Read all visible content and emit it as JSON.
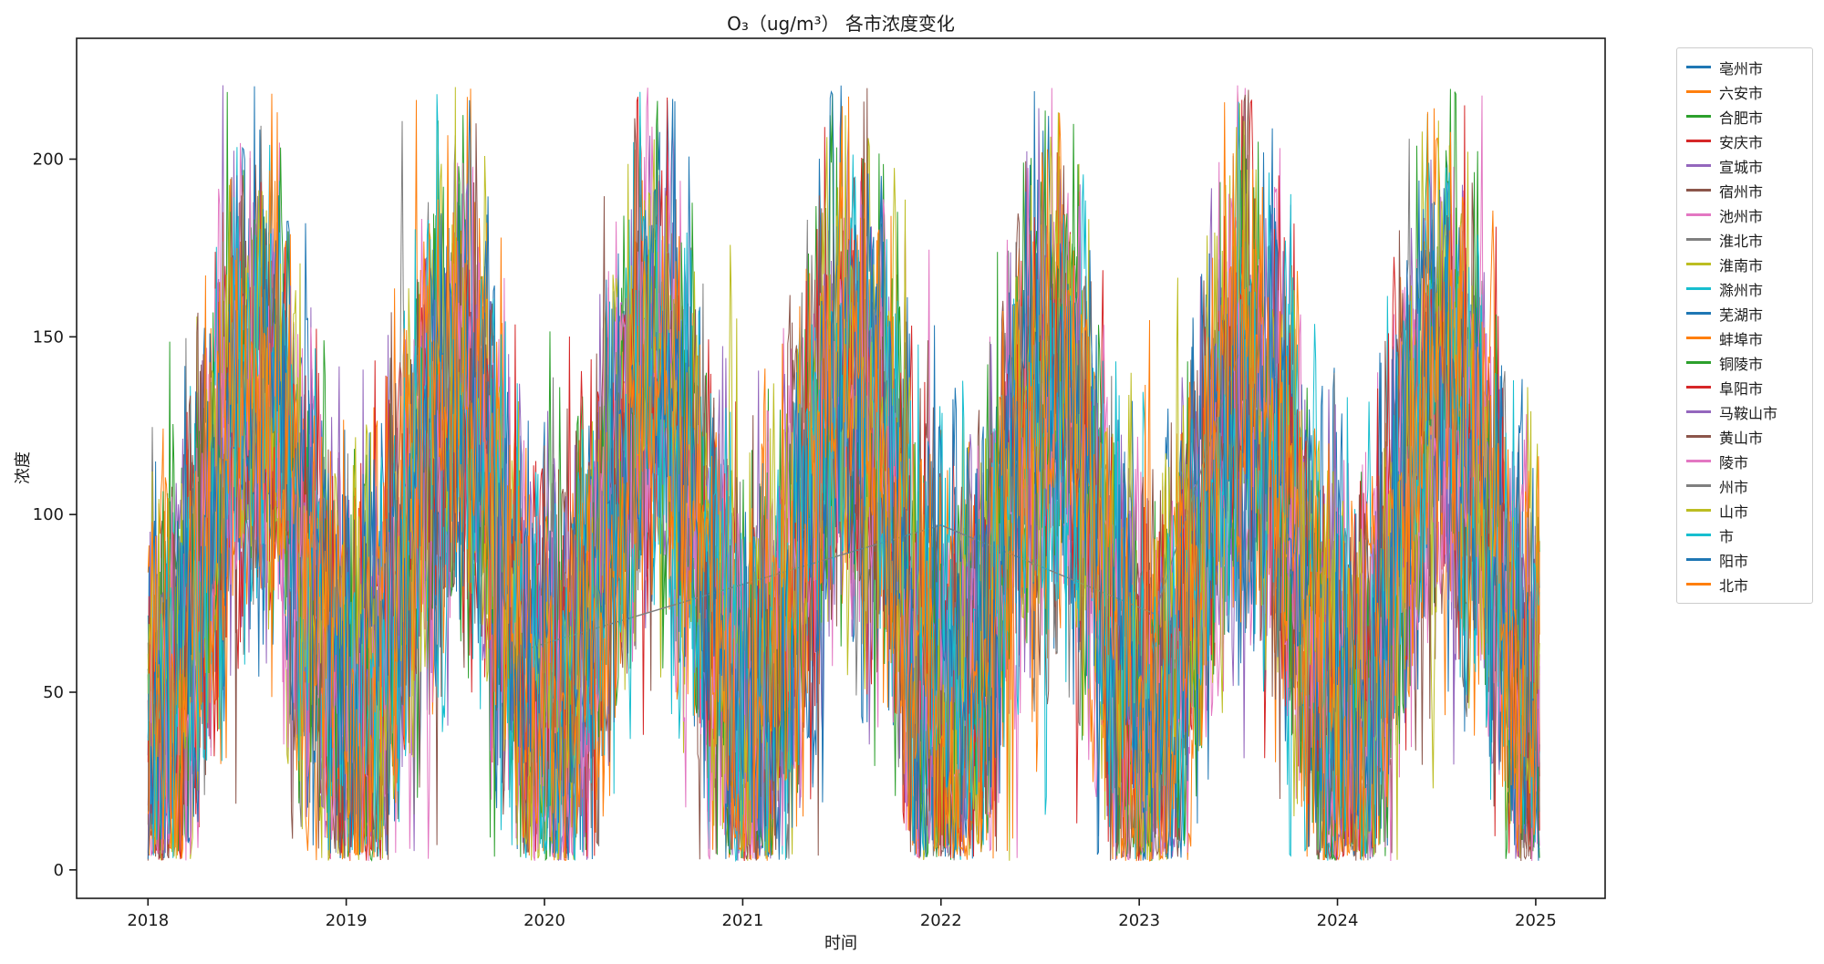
{
  "page": {
    "background": "#ffffff"
  },
  "chart_data": {
    "type": "line",
    "title": "O₃（ug/m³） 各市浓度变化",
    "xlabel": "时间",
    "ylabel": "浓度",
    "x_ticks": [
      2018,
      2019,
      2020,
      2021,
      2022,
      2023,
      2024,
      2025
    ],
    "y_ticks": [
      0,
      50,
      100,
      150,
      200
    ],
    "xlim": [
      2017.64,
      2025.35
    ],
    "ylim": [
      -8,
      234
    ],
    "grid": false,
    "legend_position": "outside-right",
    "series": [
      {
        "name": "亳州市",
        "color": "#1f77b4"
      },
      {
        "name": "六安市",
        "color": "#ff7f0e"
      },
      {
        "name": "合肥市",
        "color": "#2ca02c"
      },
      {
        "name": "安庆市",
        "color": "#d62728"
      },
      {
        "name": "宣城市",
        "color": "#9467bd"
      },
      {
        "name": "宿州市",
        "color": "#8c564b"
      },
      {
        "name": "池州市",
        "color": "#e377c2"
      },
      {
        "name": "淮北市",
        "color": "#7f7f7f"
      },
      {
        "name": "淮南市",
        "color": "#bcbd22"
      },
      {
        "name": "滁州市",
        "color": "#17becf"
      },
      {
        "name": "芜湖市",
        "color": "#1f77b4"
      },
      {
        "name": "蚌埠市",
        "color": "#ff7f0e"
      },
      {
        "name": "铜陵市",
        "color": "#2ca02c"
      },
      {
        "name": "阜阳市",
        "color": "#d62728"
      },
      {
        "name": "马鞍山市",
        "color": "#9467bd"
      },
      {
        "name": "黄山市",
        "color": "#8c564b"
      },
      {
        "name": "陵市",
        "color": "#e377c2"
      },
      {
        "name": "州市",
        "color": "#7f7f7f",
        "sparse_points": [
          [
            2019.9,
            62
          ],
          [
            2022.0,
            97
          ],
          [
            2023.08,
            72
          ],
          [
            2023.5,
            145
          ]
        ]
      },
      {
        "name": "山市",
        "color": "#bcbd22"
      },
      {
        "name": "市",
        "color": "#17becf"
      },
      {
        "name": "阳市",
        "color": "#1f77b4"
      },
      {
        "name": "北市",
        "color": "#ff7f0e"
      }
    ],
    "pattern": {
      "description": "Daily O₃ concentration series for each city, 2018 through 2025; strong annual seasonality with summer peaks ≈200–222 and winter troughs ≈5–40; all city series heavily overlapping",
      "base_mean": 88,
      "seasonal_amplitude": 46,
      "peak_season": "June–July",
      "trough_season": "early January",
      "daily_noise_sigma": 32,
      "value_range": [
        2,
        222
      ]
    }
  }
}
